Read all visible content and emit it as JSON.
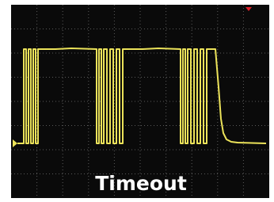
{
  "caption": "Timeout"
}
